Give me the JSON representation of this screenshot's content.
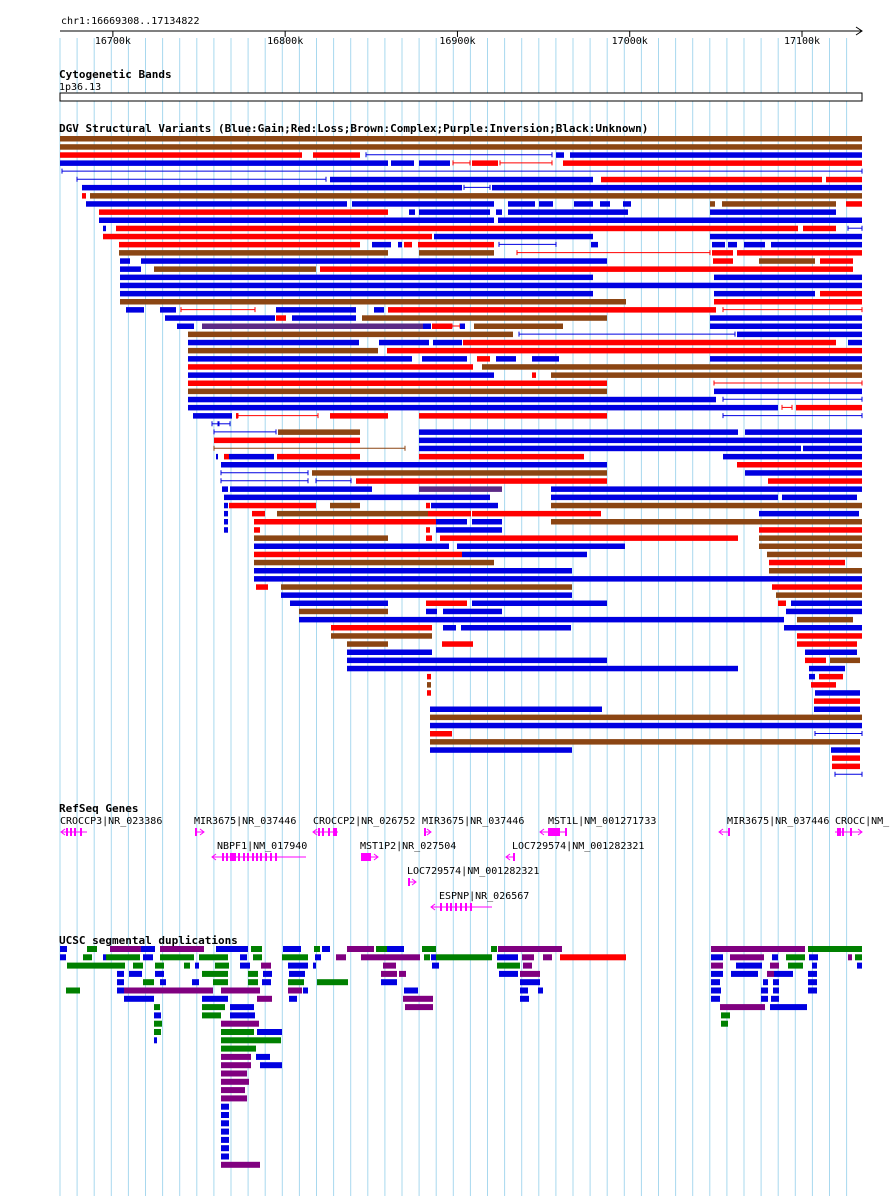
{
  "location": "chr1:16669308..17134822",
  "ruler": {
    "start": 16669308,
    "end": 17134822,
    "ticks": [
      {
        "pos": 16700000,
        "label": "16700k"
      },
      {
        "pos": 16800000,
        "label": "16800k"
      },
      {
        "pos": 16900000,
        "label": "16900k"
      },
      {
        "pos": 17000000,
        "label": "17000k"
      },
      {
        "pos": 17100000,
        "label": "17100k"
      }
    ]
  },
  "cytoband": {
    "title": "Cytogenetic Bands",
    "band": "1p36.13"
  },
  "dgv": {
    "title": "DGV Structural Variants (Blue:Gain;Red:Loss;Brown:Complex;Purple:Inversion;Black:Unknown)",
    "colors": {
      "gain": "#0000e0",
      "loss": "#ff0000",
      "complex": "#8b4513",
      "inversion": "#5b2a86",
      "unknown": "#000000"
    }
  },
  "refseq": {
    "title": "RefSeq Genes",
    "genes": [
      {
        "label": "CROCCP3|NR_023386",
        "strand": "-"
      },
      {
        "label": "MIR3675|NR_037446",
        "strand": "+"
      },
      {
        "label": "NBPF1|NM_017940",
        "strand": "-"
      },
      {
        "label": "CROCCP2|NR_026752",
        "strand": "-"
      },
      {
        "label": "MST1P2|NR_027504",
        "strand": "+"
      },
      {
        "label": "MIR3675|NR_037446",
        "strand": "+"
      },
      {
        "label": "LOC729574|NM_001282321",
        "strand": "+"
      },
      {
        "label": "ESPNP|NR_026567",
        "strand": "-"
      },
      {
        "label": "MST1L|NM_001271733",
        "strand": "-"
      },
      {
        "label": "LOC729574|NM_001282321",
        "strand": "-"
      },
      {
        "label": "MIR3675|NR_037446",
        "strand": "-"
      },
      {
        "label": "CROCC|NM_",
        "strand": "+"
      }
    ],
    "color": "#ff00ff"
  },
  "segdup": {
    "title": "UCSC segmental duplications",
    "colors": {
      "blue": "#0000e0",
      "green": "#008000",
      "purple": "#800080",
      "red": "#ff0000"
    }
  }
}
